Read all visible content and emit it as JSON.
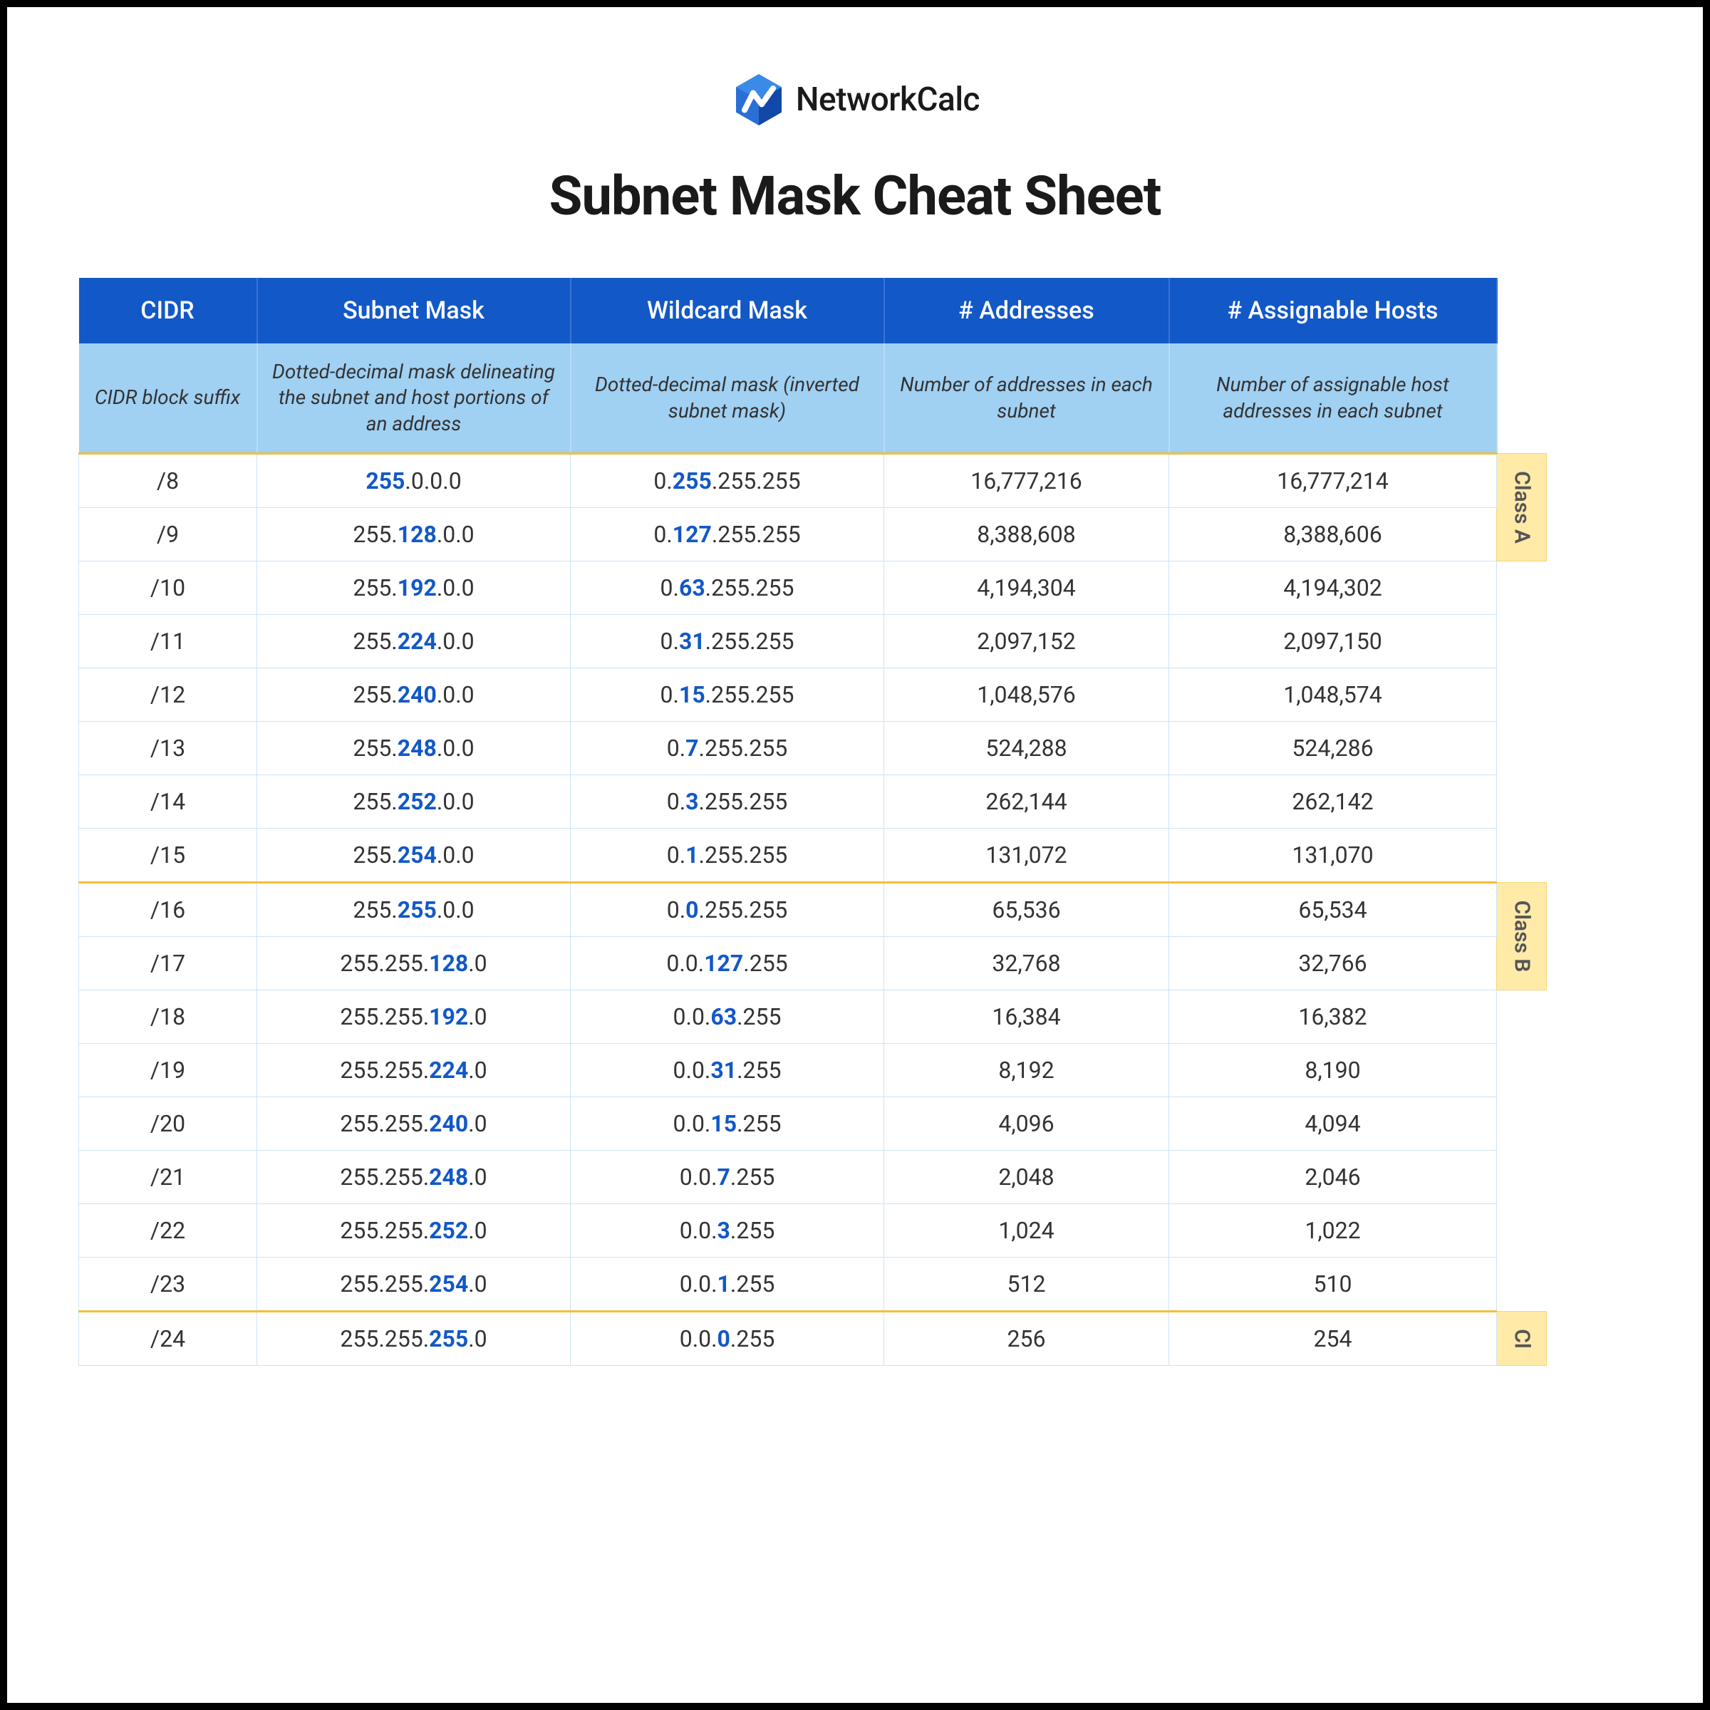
{
  "brand": "NetworkCalc",
  "title": "Subnet Mask Cheat Sheet",
  "logo_color_primary": "#2a6fd6",
  "logo_color_secondary": "#1248a8",
  "colors": {
    "header_bg": "#1258c7",
    "header_text": "#ffffff",
    "desc_bg": "#a0d0f2",
    "row_border": "#cde4f5",
    "separator": "#f5be3c",
    "class_bg": "#ffeaa7",
    "bold_text": "#1258c7"
  },
  "columns": [
    {
      "label": "CIDR",
      "desc": "CIDR block suffix"
    },
    {
      "label": "Subnet Mask",
      "desc": "Dotted-decimal mask delineating the subnet and host portions of an address"
    },
    {
      "label": "Wildcard Mask",
      "desc": "Dotted-decimal mask (inverted subnet mask)"
    },
    {
      "label": "# Addresses",
      "desc": "Number of addresses in each subnet"
    },
    {
      "label": "# Assignable Hosts",
      "desc": "Number of assignable host addresses in each subnet"
    }
  ],
  "class_labels": {
    "a": "Class A",
    "b": "Class B",
    "c": "Cl"
  },
  "rows": [
    {
      "cidr": "/8",
      "sm_pre": "",
      "sm_b": "255",
      "sm_post": ".0.0.0",
      "wm_pre": "0.",
      "wm_b": "255",
      "wm_post": ".255.255",
      "addr": "16,777,216",
      "hosts": "16,777,214",
      "class_start": "a",
      "class_span": 2
    },
    {
      "cidr": "/9",
      "sm_pre": "255.",
      "sm_b": "128",
      "sm_post": ".0.0",
      "wm_pre": "0.",
      "wm_b": "127",
      "wm_post": ".255.255",
      "addr": "8,388,608",
      "hosts": "8,388,606"
    },
    {
      "cidr": "/10",
      "sm_pre": "255.",
      "sm_b": "192",
      "sm_post": ".0.0",
      "wm_pre": "0.",
      "wm_b": "63",
      "wm_post": ".255.255",
      "addr": "4,194,304",
      "hosts": "4,194,302",
      "side_empty": 6
    },
    {
      "cidr": "/11",
      "sm_pre": "255.",
      "sm_b": "224",
      "sm_post": ".0.0",
      "wm_pre": "0.",
      "wm_b": "31",
      "wm_post": ".255.255",
      "addr": "2,097,152",
      "hosts": "2,097,150"
    },
    {
      "cidr": "/12",
      "sm_pre": "255.",
      "sm_b": "240",
      "sm_post": ".0.0",
      "wm_pre": "0.",
      "wm_b": "15",
      "wm_post": ".255.255",
      "addr": "1,048,576",
      "hosts": "1,048,574"
    },
    {
      "cidr": "/13",
      "sm_pre": "255.",
      "sm_b": "248",
      "sm_post": ".0.0",
      "wm_pre": "0.",
      "wm_b": "7",
      "wm_post": ".255.255",
      "addr": "524,288",
      "hosts": "524,286"
    },
    {
      "cidr": "/14",
      "sm_pre": "255.",
      "sm_b": "252",
      "sm_post": ".0.0",
      "wm_pre": "0.",
      "wm_b": "3",
      "wm_post": ".255.255",
      "addr": "262,144",
      "hosts": "262,142"
    },
    {
      "cidr": "/15",
      "sm_pre": "255.",
      "sm_b": "254",
      "sm_post": ".0.0",
      "wm_pre": "0.",
      "wm_b": "1",
      "wm_post": ".255.255",
      "addr": "131,072",
      "hosts": "131,070",
      "sep": true
    },
    {
      "cidr": "/16",
      "sm_pre": "255.",
      "sm_b": "255",
      "sm_post": ".0.0",
      "wm_pre": "0.",
      "wm_b": "0",
      "wm_post": ".255.255",
      "addr": "65,536",
      "hosts": "65,534",
      "class_start": "b",
      "class_span": 2
    },
    {
      "cidr": "/17",
      "sm_pre": "255.255.",
      "sm_b": "128",
      "sm_post": ".0",
      "wm_pre": "0.0.",
      "wm_b": "127",
      "wm_post": ".255",
      "addr": "32,768",
      "hosts": "32,766"
    },
    {
      "cidr": "/18",
      "sm_pre": "255.255.",
      "sm_b": "192",
      "sm_post": ".0",
      "wm_pre": "0.0.",
      "wm_b": "63",
      "wm_post": ".255",
      "addr": "16,384",
      "hosts": "16,382",
      "side_empty": 6
    },
    {
      "cidr": "/19",
      "sm_pre": "255.255.",
      "sm_b": "224",
      "sm_post": ".0",
      "wm_pre": "0.0.",
      "wm_b": "31",
      "wm_post": ".255",
      "addr": "8,192",
      "hosts": "8,190"
    },
    {
      "cidr": "/20",
      "sm_pre": "255.255.",
      "sm_b": "240",
      "sm_post": ".0",
      "wm_pre": "0.0.",
      "wm_b": "15",
      "wm_post": ".255",
      "addr": "4,096",
      "hosts": "4,094"
    },
    {
      "cidr": "/21",
      "sm_pre": "255.255.",
      "sm_b": "248",
      "sm_post": ".0",
      "wm_pre": "0.0.",
      "wm_b": "7",
      "wm_post": ".255",
      "addr": "2,048",
      "hosts": "2,046"
    },
    {
      "cidr": "/22",
      "sm_pre": "255.255.",
      "sm_b": "252",
      "sm_post": ".0",
      "wm_pre": "0.0.",
      "wm_b": "3",
      "wm_post": ".255",
      "addr": "1,024",
      "hosts": "1,022"
    },
    {
      "cidr": "/23",
      "sm_pre": "255.255.",
      "sm_b": "254",
      "sm_post": ".0",
      "wm_pre": "0.0.",
      "wm_b": "1",
      "wm_post": ".255",
      "addr": "512",
      "hosts": "510",
      "sep": true
    },
    {
      "cidr": "/24",
      "sm_pre": "255.255.",
      "sm_b": "255",
      "sm_post": ".0",
      "wm_pre": "0.0.",
      "wm_b": "0",
      "wm_post": ".255",
      "addr": "256",
      "hosts": "254",
      "class_start": "c",
      "class_span": 1
    }
  ]
}
